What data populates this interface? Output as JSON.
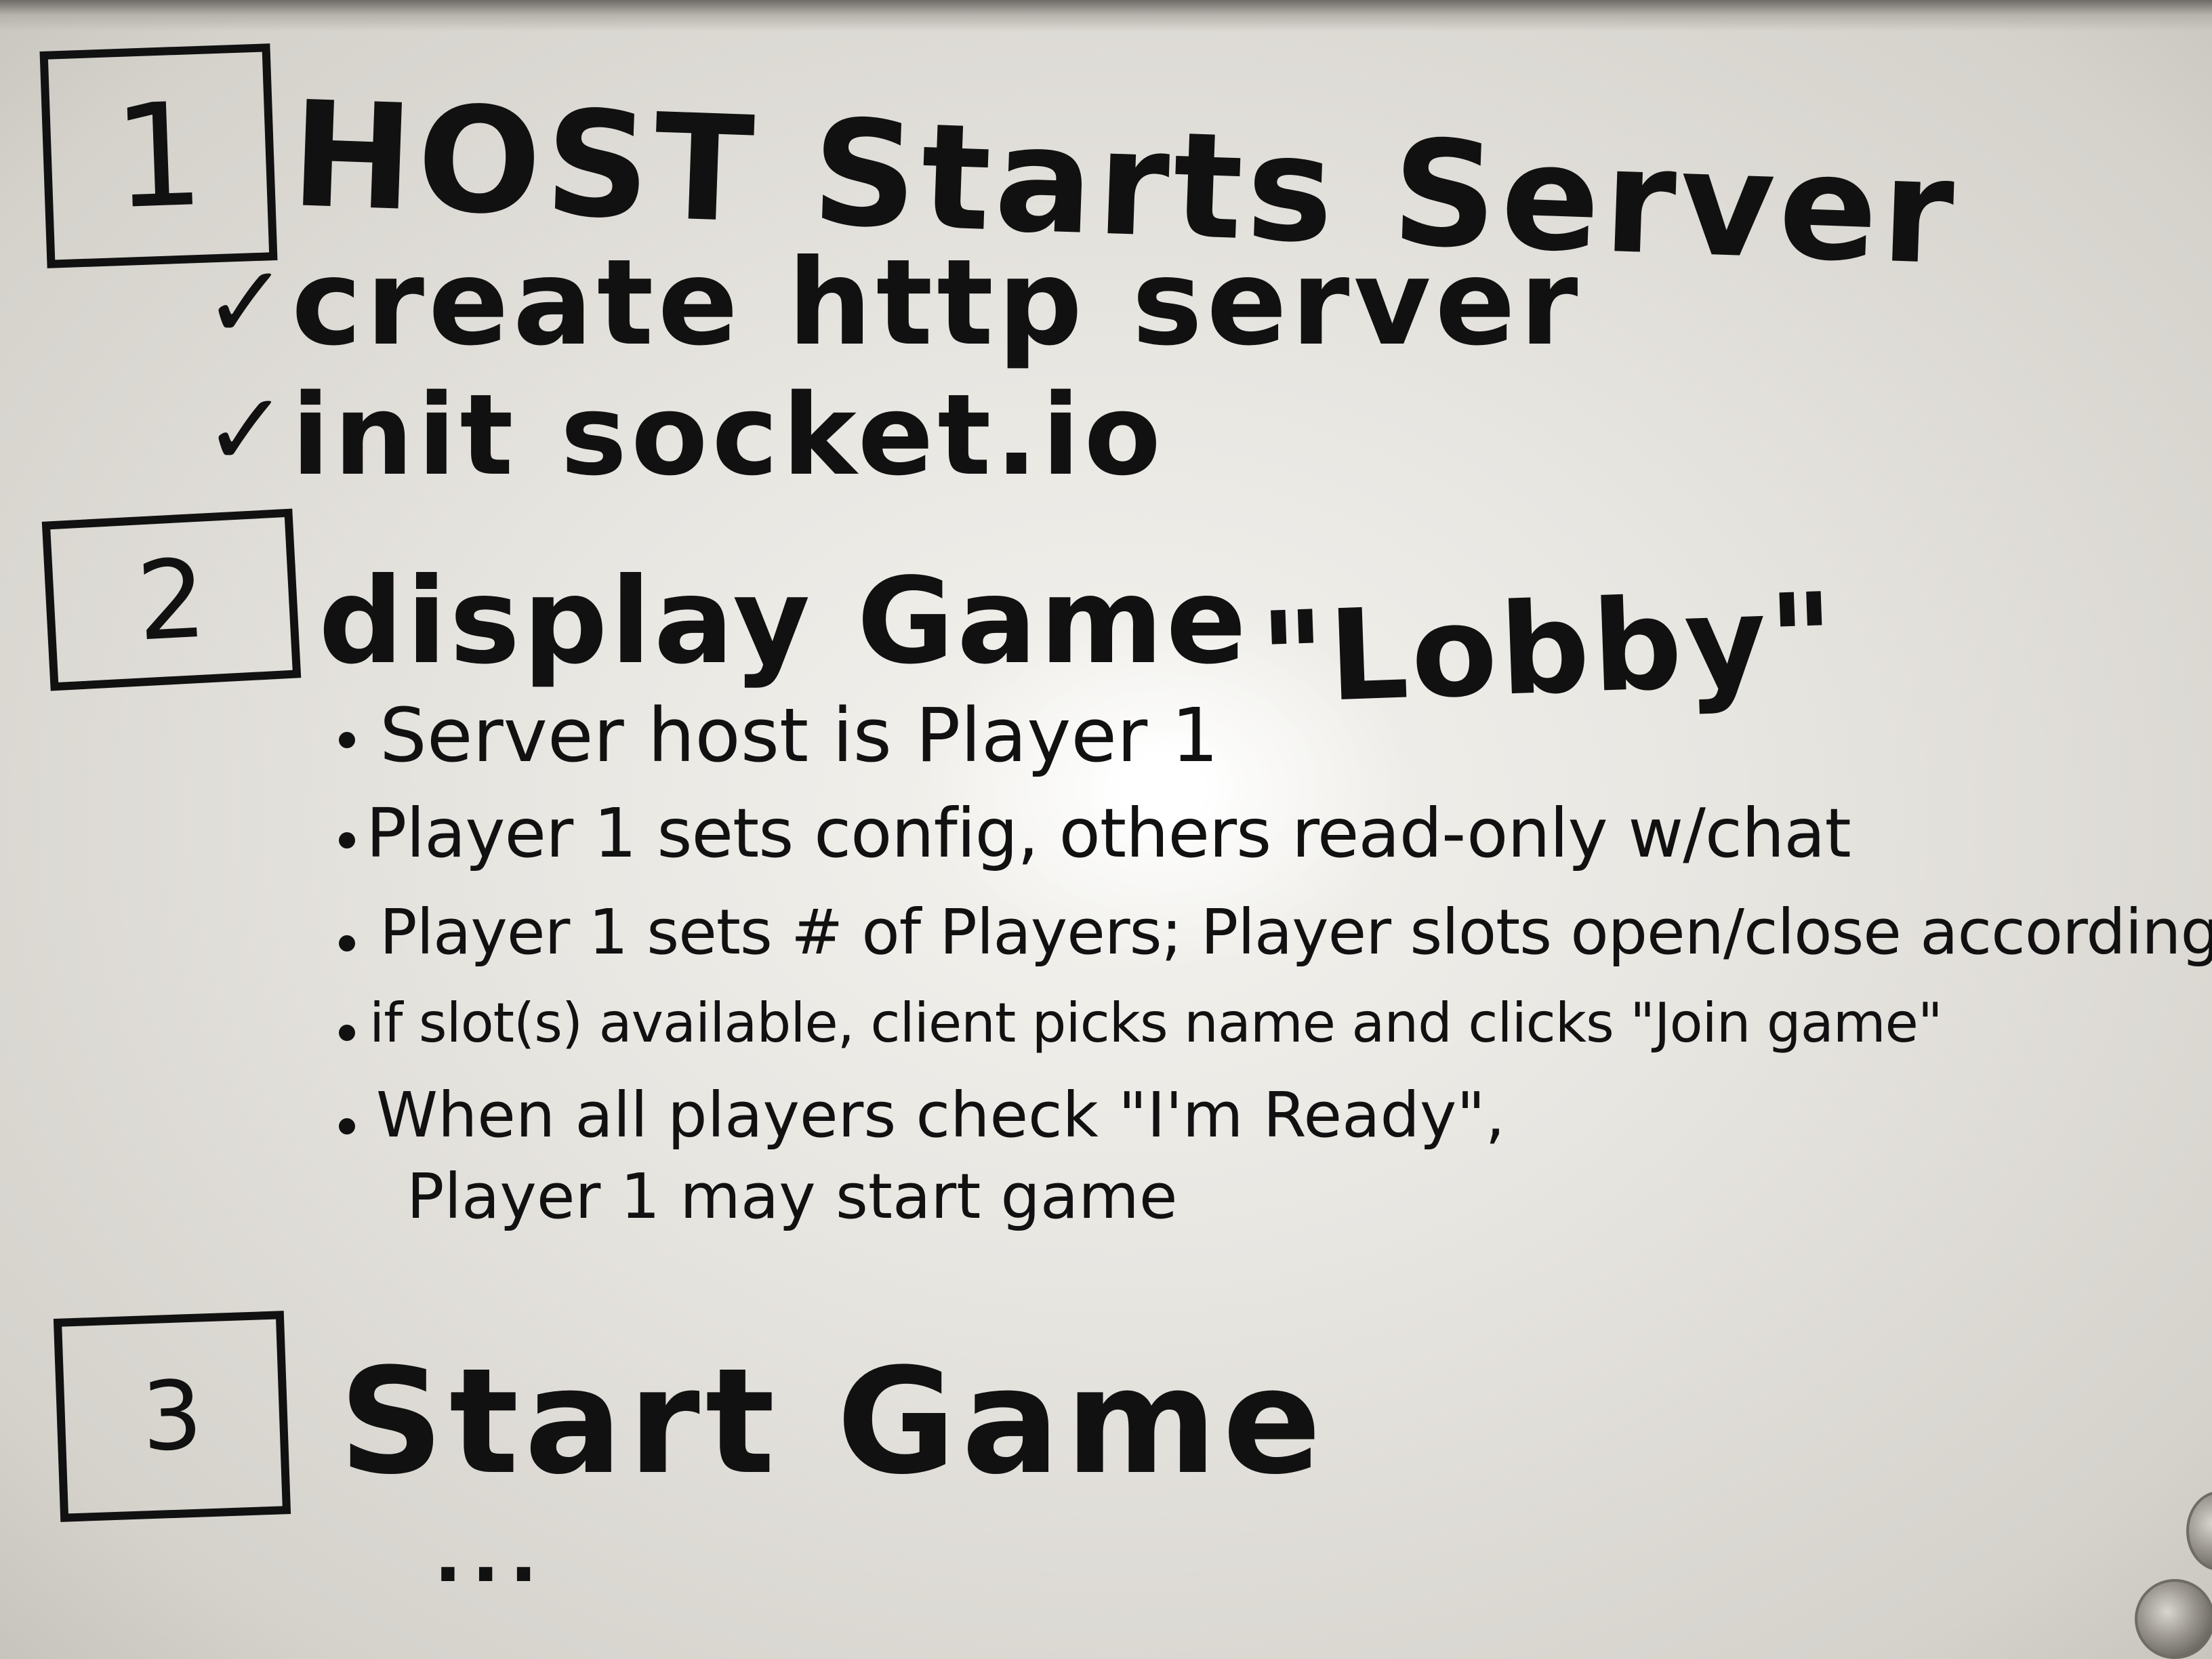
{
  "step1": {
    "number": "1",
    "heading": "HOST Starts Server",
    "check_mark": "✓",
    "items": [
      "create http server",
      "init socket.io"
    ]
  },
  "step2": {
    "number": "2",
    "heading": "display Game",
    "heading_quote": "\"Lobby\"",
    "bullets": [
      "Server host is Player 1",
      "Player 1 sets config, others read-only w/chat",
      "Player 1 sets # of Players; Player slots open/close according",
      "if slot(s) available, client picks name and clicks \"Join game\"",
      "When all players check \"I'm Ready\","
    ],
    "bullet_continuation": "Player 1 may start game"
  },
  "step3": {
    "number": "3",
    "heading": "Start Game",
    "ellipsis": "..."
  }
}
